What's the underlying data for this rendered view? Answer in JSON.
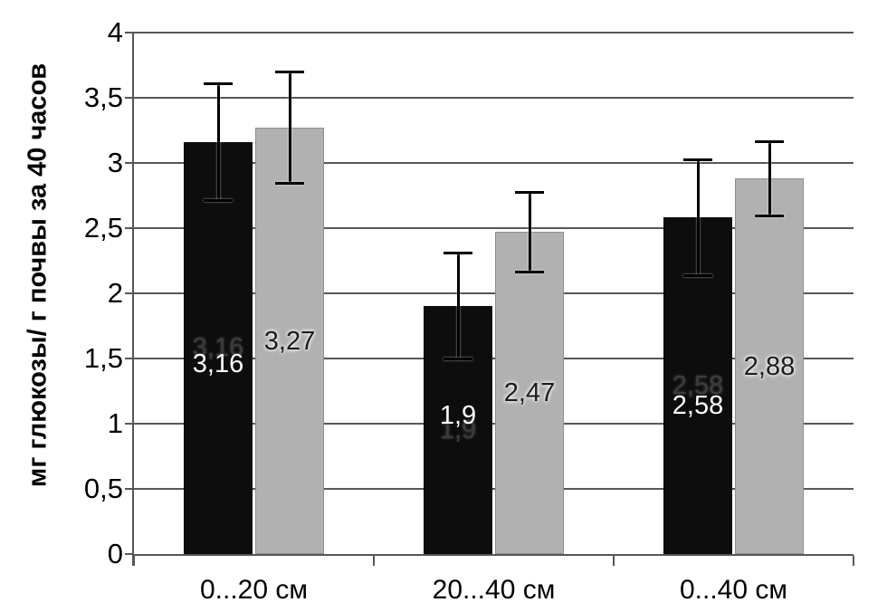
{
  "chart_data": {
    "type": "bar",
    "title": "",
    "xlabel": "",
    "ylabel": "мг глюкозы/ г почвы за 40 часов",
    "categories": [
      "0...20 см",
      "20...40 см",
      "0...40 см"
    ],
    "series": [
      {
        "name": "black-bars",
        "color": "#0d0d0d",
        "values": [
          3.16,
          1.9,
          2.58
        ],
        "value_labels": [
          "3,16",
          "1,9",
          "2,58"
        ],
        "errors": [
          0.45,
          0.41,
          0.45
        ]
      },
      {
        "name": "gray-bars",
        "color": "#b1b1b1",
        "values": [
          3.27,
          2.47,
          2.88
        ],
        "value_labels": [
          "3,27",
          "2,47",
          "2,88"
        ],
        "errors": [
          0.43,
          0.31,
          0.29
        ]
      }
    ],
    "ylim": [
      0,
      4
    ],
    "ytick_step": 0.5,
    "ytick_labels": [
      "0",
      "0,5",
      "1",
      "1,5",
      "2",
      "2,5",
      "3",
      "3,5",
      "4"
    ],
    "grid": true,
    "error_bars": true,
    "legend": "none"
  },
  "colors": {
    "background": "#ffffff",
    "axis": "#575757",
    "grid": "#575757",
    "bar_black": "#0d0d0d",
    "bar_gray": "#b1b1b1",
    "bar_gray_border": "#8f8f8f",
    "error_bar": "#000000",
    "label_on_black": "#ffffff",
    "label_ghost_on_black": "#3c3c3c",
    "label_on_gray": "#1c1c1c",
    "text": "#000000"
  }
}
